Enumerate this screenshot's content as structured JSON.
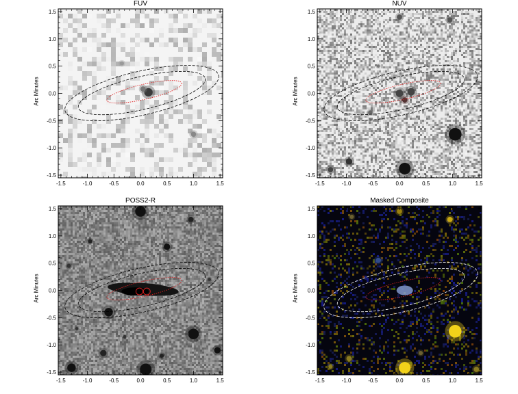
{
  "figure": {
    "panels": [
      {
        "id": "fuv",
        "title": "FUV",
        "ylabel": "Arc Minutes",
        "image_style": "grayscale-noise-light"
      },
      {
        "id": "nuv",
        "title": "NUV",
        "ylabel": "Arc Minutes",
        "image_style": "grayscale-noise-fine"
      },
      {
        "id": "poss2r",
        "title": "POSS2-R",
        "ylabel": "Arc Minutes",
        "image_style": "grayscale-optical"
      },
      {
        "id": "composite",
        "title": "Masked Composite",
        "ylabel": "Arc Minutes",
        "image_style": "color-composite-dark"
      }
    ],
    "x_ticks": [
      "-1.5",
      "-1.0",
      "-0.5",
      "0.0",
      "0.5",
      "1.0",
      "1.5"
    ],
    "y_ticks": [
      "1.5",
      "1.0",
      "0.5",
      "0.0",
      "-0.5",
      "-1.0",
      "-1.5"
    ],
    "axis_range_arcmin": [
      -1.55,
      1.55
    ],
    "colors": {
      "ellipse_outer_light": "#000000",
      "ellipse_outer_composite": "#ffffff",
      "ellipse_inner": "#e02020",
      "composite_star": "#f5d020",
      "composite_background": "#05050f"
    }
  }
}
